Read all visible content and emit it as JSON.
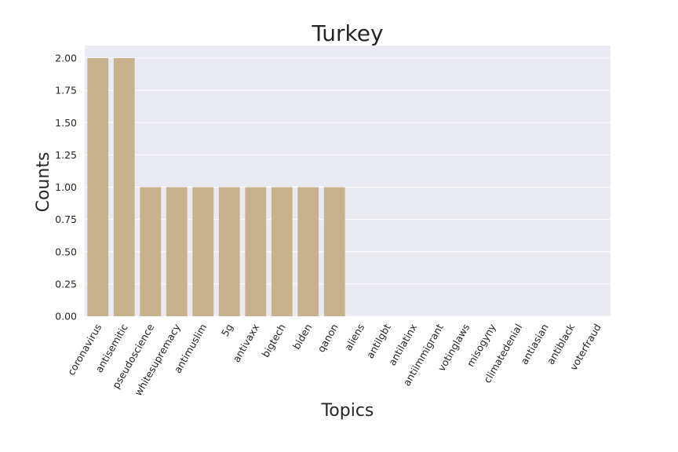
{
  "chart_data": {
    "type": "bar",
    "title": "Turkey",
    "xlabel": "Topics",
    "ylabel": "Counts",
    "categories": [
      "coronavirus",
      "antisemitic",
      "pseudoscience",
      "whitesupremacy",
      "antimuslim",
      "5g",
      "antivaxx",
      "bigtech",
      "biden",
      "qanon",
      "aliens",
      "antilgbt",
      "antilatinx",
      "antiimmigrant",
      "votinglaws",
      "misogyny",
      "climatedenial",
      "antiasian",
      "antiblack",
      "voterfraud"
    ],
    "values": [
      2,
      2,
      1,
      1,
      1,
      1,
      1,
      1,
      1,
      1,
      0,
      0,
      0,
      0,
      0,
      0,
      0,
      0,
      0,
      0
    ],
    "ylim": [
      0,
      2.0
    ],
    "yticks": [
      "0.00",
      "0.25",
      "0.50",
      "0.75",
      "1.00",
      "1.25",
      "1.50",
      "1.75",
      "2.00"
    ],
    "grid": true,
    "colors": {
      "bar": "#c8b18d",
      "background": "#eaeaf2",
      "grid": "#ffffff"
    }
  }
}
